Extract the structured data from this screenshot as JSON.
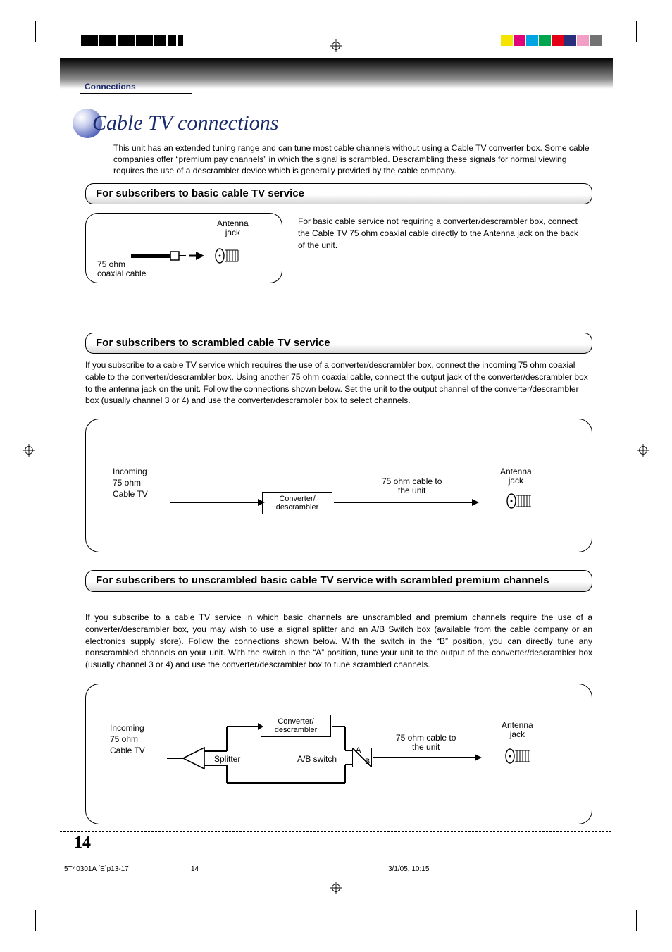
{
  "print_marks": {
    "color_bars": [
      "#f5e400",
      "#e0007a",
      "#00a4e2",
      "#00a550",
      "#e30016",
      "#2a2f7c",
      "#f29fc5",
      "#727272"
    ]
  },
  "section_label": "Connections",
  "page_title": "Cable TV connections",
  "intro_text": "This unit has an extended tuning range and can tune most cable channels without using a Cable TV converter box. Some cable companies offer “premium pay channels” in which the signal is scrambled. Descrambling these signals for normal viewing requires the use of a descrambler device which is generally provided by the cable company.",
  "sub1": {
    "heading": "For subscribers to basic cable TV service",
    "diagram": {
      "antenna_jack": "Antenna jack",
      "coax_label": "75 ohm coaxial cable"
    },
    "desc": "For basic cable service not requiring a converter/descrambler box, connect the Cable TV 75 ohm coaxial cable directly to the Antenna jack on the back of the unit."
  },
  "sub2": {
    "heading": "For subscribers to scrambled cable TV service",
    "desc": "If you subscribe to a cable TV service which requires the use of a converter/descrambler box, connect the incoming 75 ohm coaxial cable to the converter/descrambler box. Using another 75 ohm coaxial cable, connect the output jack of the converter/descrambler box to the antenna jack on the unit. Follow the connections shown below. Set the unit to the output channel of the converter/descrambler box (usually channel 3 or 4) and use the converter/descrambler box to select channels.",
    "diagram": {
      "incoming": "Incoming 75 ohm Cable TV",
      "converter": "Converter/ descrambler",
      "to_unit": "75 ohm cable to the unit",
      "antenna_jack": "Antenna jack"
    }
  },
  "sub3": {
    "heading": "For subscribers to unscrambled basic cable TV service with scrambled premium channels",
    "desc": "If you subscribe to a cable TV service in which basic channels are unscrambled and premium channels require the use of a converter/descrambler box, you may wish to use a signal splitter and an A/B Switch box (available from the cable company or an electronics supply store). Follow the connections shown below. With the switch in the “B” position, you can directly tune any nonscrambled channels on your unit. With the switch in the “A” position, tune your unit to the output of the converter/descrambler box (usually channel 3 or 4) and use the converter/descrambler box to tune scrambled channels.",
    "diagram": {
      "incoming": "Incoming 75 ohm Cable TV",
      "converter": "Converter/ descrambler",
      "splitter": "Splitter",
      "ab_switch": "A/B switch",
      "a": "A",
      "b": "B",
      "to_unit": "75 ohm cable to the unit",
      "antenna_jack": "Antenna jack"
    }
  },
  "page_number": "14",
  "footer": {
    "file": "5T40301A [E]p13-17",
    "page": "14",
    "date": "3/1/05, 10:15"
  },
  "colors": {
    "heading_blue": "#1a2a6b",
    "gradient_dark": "#000000",
    "gradient_light": "#ffffff"
  }
}
